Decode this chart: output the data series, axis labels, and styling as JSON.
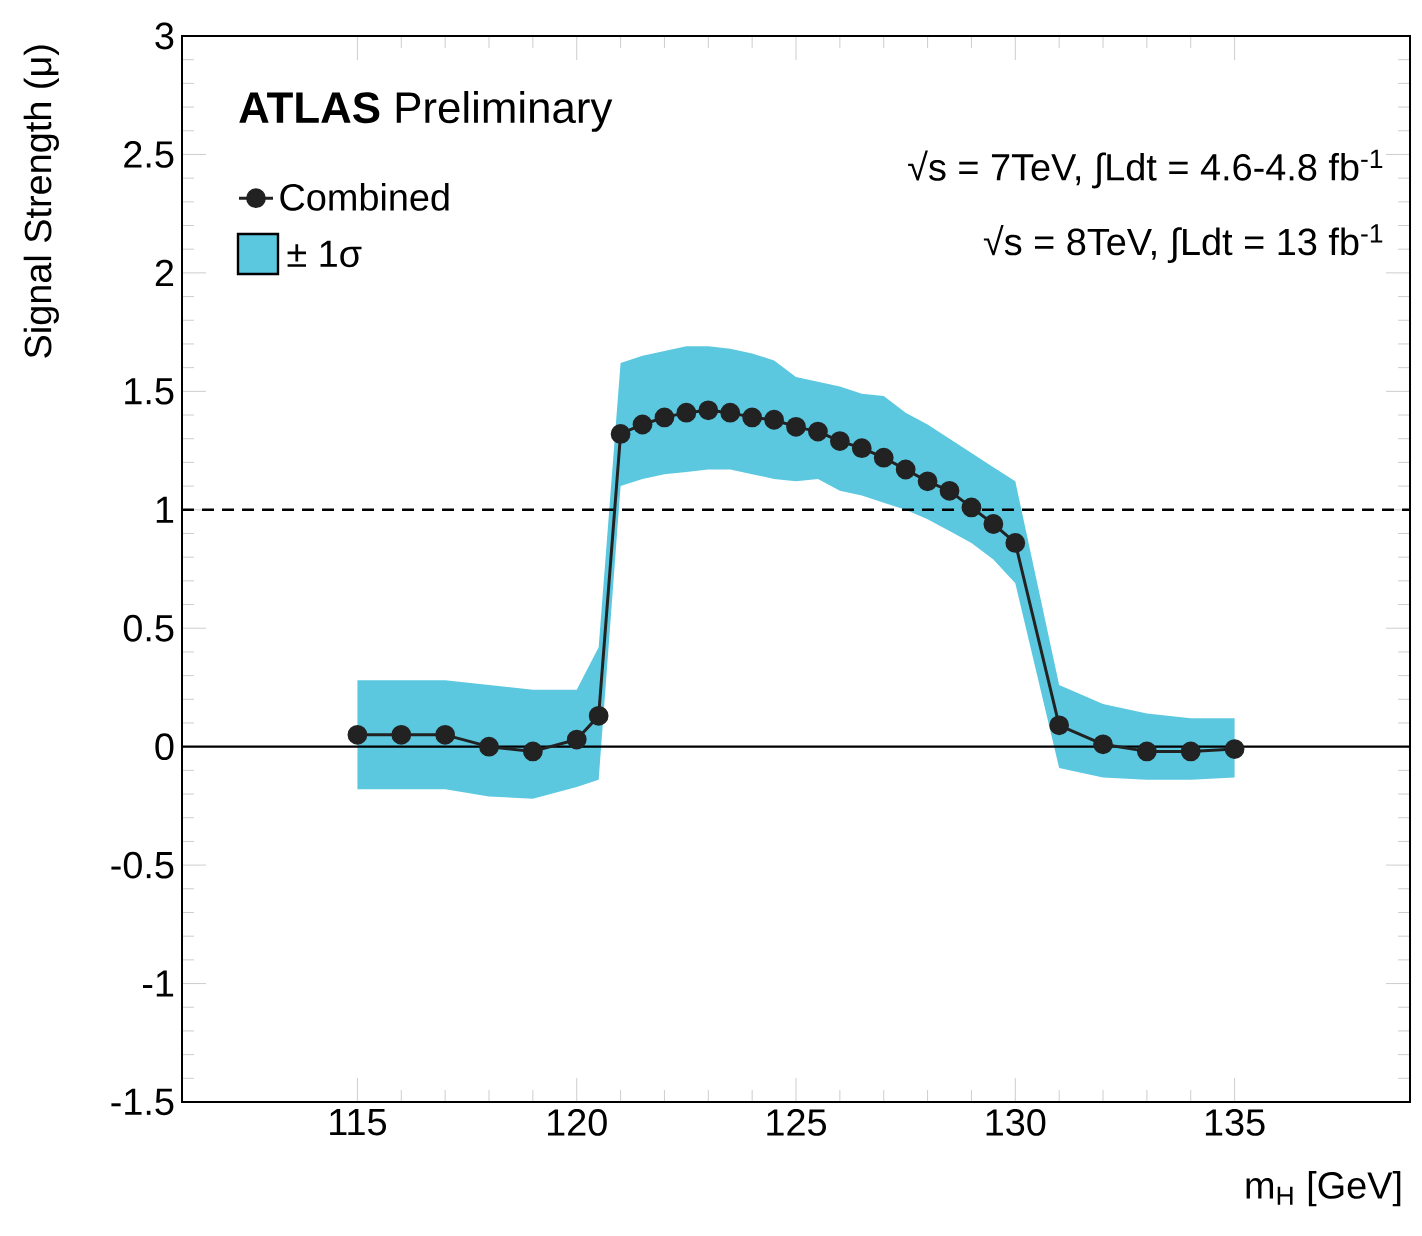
{
  "chart_data": {
    "type": "line",
    "xlabel": "m$_{H}$ [GeV]",
    "ylabel": "Signal Strength (μ)",
    "annotations": [
      "**ATLAS** Preliminary",
      "√s = 7TeV, ∫Ldt = 4.6-4.8 fb$^{-1}$",
      "√s = 8TeV, ∫Ldt = 13 fb$^{-1}$",
      "± 1σ"
    ],
    "series": [
      {
        "name": "Combined",
        "color": "#222222",
        "x": [
          115,
          116,
          117,
          118,
          119,
          120,
          120.5,
          121,
          121.5,
          122,
          122.5,
          123,
          123.5,
          124,
          124.5,
          125,
          125.5,
          126,
          126.5,
          127,
          127.5,
          128,
          128.5,
          129,
          129.5,
          130,
          131,
          132,
          133,
          134,
          135
        ],
        "values": [
          0.05,
          0.05,
          0.05,
          0.0,
          -0.02,
          0.03,
          0.13,
          1.32,
          1.36,
          1.39,
          1.41,
          1.42,
          1.41,
          1.39,
          1.38,
          1.35,
          1.33,
          1.29,
          1.26,
          1.22,
          1.17,
          1.12,
          1.08,
          1.01,
          0.94,
          0.86,
          0.09,
          0.01,
          -0.02,
          -0.02,
          -0.01
        ],
        "lower": [
          -0.18,
          -0.18,
          -0.18,
          -0.21,
          -0.22,
          -0.17,
          -0.14,
          1.1,
          1.13,
          1.15,
          1.16,
          1.17,
          1.17,
          1.15,
          1.13,
          1.12,
          1.13,
          1.08,
          1.06,
          1.03,
          1.0,
          0.96,
          0.91,
          0.86,
          0.79,
          0.69,
          -0.09,
          -0.13,
          -0.14,
          -0.14,
          -0.13
        ],
        "upper": [
          0.28,
          0.28,
          0.28,
          0.26,
          0.24,
          0.24,
          0.42,
          1.62,
          1.65,
          1.67,
          1.69,
          1.69,
          1.68,
          1.66,
          1.63,
          1.56,
          1.54,
          1.52,
          1.49,
          1.48,
          1.41,
          1.36,
          1.3,
          1.24,
          1.18,
          1.12,
          0.26,
          0.18,
          0.14,
          0.12,
          0.12
        ]
      }
    ],
    "xlim": [
      111,
      139
    ],
    "ylim": [
      -1.5,
      3
    ],
    "xticks": [
      115,
      120,
      125,
      130,
      135
    ],
    "yticks": [
      -1.5,
      -1,
      -0.5,
      0,
      0.5,
      1,
      1.5,
      2,
      2.5,
      3
    ],
    "ref_lines": [
      {
        "axis": "y",
        "value": 0,
        "line_style": "solid",
        "color": "#000000"
      },
      {
        "axis": "y",
        "value": 1,
        "line_style": "dashed",
        "color": "#000000"
      }
    ],
    "grid": false,
    "legend": "top left",
    "marker": "circle",
    "line_style": "solid"
  }
}
